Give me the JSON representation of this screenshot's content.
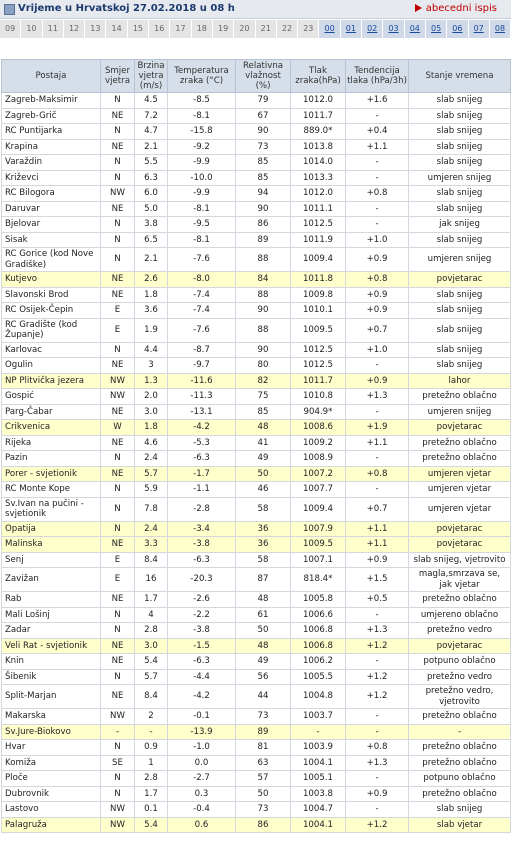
{
  "header": {
    "title": "Vrijeme u Hrvatskoj 27.02.2018 u 08 h",
    "link": "abecedni ispis"
  },
  "hours": [
    "09",
    "10",
    "11",
    "12",
    "13",
    "14",
    "15",
    "16",
    "17",
    "18",
    "19",
    "20",
    "21",
    "22",
    "23",
    "00",
    "01",
    "02",
    "03",
    "04",
    "05",
    "06",
    "07",
    "08"
  ],
  "table": {
    "columns": [
      "Postaja",
      "Smjer vjetra",
      "Brzina vjetra (m/s)",
      "Temperatura zraka (°C)",
      "Relativna vlažnost (%)",
      "Tlak zraka(hPa)",
      "Tendencija tlaka (hPa/3h)",
      "Stanje vremena"
    ],
    "rows": [
      {
        "cells": [
          "Zagreb-Maksimir",
          "N",
          "4.5",
          "-8.5",
          "79",
          "1012.0",
          "+1.6",
          "slab snijeg"
        ]
      },
      {
        "cells": [
          "Zagreb-Grič",
          "NE",
          "7.2",
          "-8.1",
          "67",
          "1011.7",
          "-",
          "slab snijeg"
        ]
      },
      {
        "cells": [
          "RC Puntijarka",
          "N",
          "4.7",
          "-15.8",
          "90",
          "889.0*",
          "+0.4",
          "slab snijeg"
        ]
      },
      {
        "cells": [
          "Krapina",
          "NE",
          "2.1",
          "-9.2",
          "73",
          "1013.8",
          "+1.1",
          "slab snijeg"
        ]
      },
      {
        "cells": [
          "Varaždin",
          "N",
          "5.5",
          "-9.9",
          "85",
          "1014.0",
          "-",
          "slab snijeg"
        ]
      },
      {
        "cells": [
          "Križevci",
          "N",
          "6.3",
          "-10.0",
          "85",
          "1013.3",
          "-",
          "umjeren snijeg"
        ]
      },
      {
        "cells": [
          "RC Bilogora",
          "NW",
          "6.0",
          "-9.9",
          "94",
          "1012.0",
          "+0.8",
          "slab snijeg"
        ]
      },
      {
        "cells": [
          "Daruvar",
          "NE",
          "5.0",
          "-8.1",
          "90",
          "1011.1",
          "-",
          "slab snijeg"
        ]
      },
      {
        "cells": [
          "Bjelovar",
          "N",
          "3.8",
          "-9.5",
          "86",
          "1012.5",
          "-",
          "jak snijeg"
        ]
      },
      {
        "cells": [
          "Sisak",
          "N",
          "6.5",
          "-8.1",
          "89",
          "1011.9",
          "+1.0",
          "slab snijeg"
        ]
      },
      {
        "cells": [
          "RC Gorice (kod Nove Gradiške)",
          "N",
          "2.1",
          "-7.6",
          "88",
          "1009.4",
          "+0.9",
          "umjeren snijeg"
        ]
      },
      {
        "cells": [
          "Kutjevo",
          "NE",
          "2.6",
          "-8.0",
          "84",
          "1011.8",
          "+0.8",
          "povjetarac"
        ],
        "highlight": true
      },
      {
        "cells": [
          "Slavonski Brod",
          "NE",
          "1.8",
          "-7.4",
          "88",
          "1009.8",
          "+0.9",
          "slab snijeg"
        ]
      },
      {
        "cells": [
          "RC Osijek-Čepin",
          "E",
          "3.6",
          "-7.4",
          "90",
          "1010.1",
          "+0.9",
          "slab snijeg"
        ]
      },
      {
        "cells": [
          "RC Gradište (kod Županje)",
          "E",
          "1.9",
          "-7.6",
          "88",
          "1009.5",
          "+0.7",
          "slab snijeg"
        ]
      },
      {
        "cells": [
          "Karlovac",
          "N",
          "4.4",
          "-8.7",
          "90",
          "1012.5",
          "+1.0",
          "slab snijeg"
        ]
      },
      {
        "cells": [
          "Ogulin",
          "NE",
          "3",
          "-9.7",
          "80",
          "1012.5",
          "-",
          "slab snijeg"
        ]
      },
      {
        "cells": [
          "NP Plitvička jezera",
          "NW",
          "1.3",
          "-11.6",
          "82",
          "1011.7",
          "+0.9",
          "lahor"
        ],
        "highlight": true
      },
      {
        "cells": [
          "Gospić",
          "NW",
          "2.0",
          "-11.3",
          "75",
          "1010.8",
          "+1.3",
          "pretežno oblačno"
        ]
      },
      {
        "cells": [
          "Parg-Čabar",
          "NE",
          "3.0",
          "-13.1",
          "85",
          "904.9*",
          "-",
          "umjeren snijeg"
        ]
      },
      {
        "cells": [
          "Crikvenica",
          "W",
          "1.8",
          "-4.2",
          "48",
          "1008.6",
          "+1.9",
          "povjetarac"
        ],
        "highlight": true
      },
      {
        "cells": [
          "Rijeka",
          "NE",
          "4.6",
          "-5.3",
          "41",
          "1009.2",
          "+1.1",
          "pretežno oblačno"
        ]
      },
      {
        "cells": [
          "Pazin",
          "N",
          "2.4",
          "-6.3",
          "49",
          "1008.9",
          "-",
          "pretežno oblačno"
        ]
      },
      {
        "cells": [
          "Porer - svjetionik",
          "NE",
          "5.7",
          "-1.7",
          "50",
          "1007.2",
          "+0.8",
          "umjeren vjetar"
        ],
        "highlight": true
      },
      {
        "cells": [
          "RC Monte Kope",
          "N",
          "5.9",
          "-1.1",
          "46",
          "1007.7",
          "-",
          "umjeren vjetar"
        ]
      },
      {
        "cells": [
          "Sv.Ivan na pučini - svjetionik",
          "N",
          "7.8",
          "-2.8",
          "58",
          "1009.4",
          "+0.7",
          "umjeren vjetar"
        ]
      },
      {
        "cells": [
          "Opatija",
          "N",
          "2.4",
          "-3.4",
          "36",
          "1007.9",
          "+1.1",
          "povjetarac"
        ],
        "highlight": true
      },
      {
        "cells": [
          "Malinska",
          "NE",
          "3.3",
          "-3.8",
          "36",
          "1009.5",
          "+1.1",
          "povjetarac"
        ],
        "highlight": true
      },
      {
        "cells": [
          "Senj",
          "E",
          "8.4",
          "-6.3",
          "58",
          "1007.1",
          "+0.9",
          "slab snijeg, vjetrovito"
        ]
      },
      {
        "cells": [
          "Zavižan",
          "E",
          "16",
          "-20.3",
          "87",
          "818.4*",
          "+1.5",
          "magla,smrzava se, jak vjetar"
        ]
      },
      {
        "cells": [
          "Rab",
          "NE",
          "1.7",
          "-2.6",
          "48",
          "1005.8",
          "+0.5",
          "pretežno oblačno"
        ]
      },
      {
        "cells": [
          "Mali Lošinj",
          "N",
          "4",
          "-2.2",
          "61",
          "1006.6",
          "-",
          "umjereno oblačno"
        ]
      },
      {
        "cells": [
          "Zadar",
          "N",
          "2.8",
          "-3.8",
          "50",
          "1006.8",
          "+1.3",
          "pretežno vedro"
        ]
      },
      {
        "cells": [
          "Veli Rat - svjetionik",
          "NE",
          "3.0",
          "-1.5",
          "48",
          "1006.8",
          "+1.2",
          "povjetarac"
        ],
        "highlight": true
      },
      {
        "cells": [
          "Knin",
          "NE",
          "5.4",
          "-6.3",
          "49",
          "1006.2",
          "-",
          "potpuno oblačno"
        ]
      },
      {
        "cells": [
          "Šibenik",
          "N",
          "5.7",
          "-4.4",
          "56",
          "1005.5",
          "+1.2",
          "pretežno vedro"
        ]
      },
      {
        "cells": [
          "Split-Marjan",
          "NE",
          "8.4",
          "-4.2",
          "44",
          "1004.8",
          "+1.2",
          "pretežno vedro, vjetrovito"
        ]
      },
      {
        "cells": [
          "Makarska",
          "NW",
          "2",
          "-0.1",
          "73",
          "1003.7",
          "-",
          "pretežno oblačno"
        ]
      },
      {
        "cells": [
          "Sv.Jure-Biokovo",
          "-",
          "-",
          "-13.9",
          "89",
          "-",
          "-",
          "-"
        ],
        "highlight": true
      },
      {
        "cells": [
          "Hvar",
          "N",
          "0.9",
          "-1.0",
          "81",
          "1003.9",
          "+0.8",
          "pretežno oblačno"
        ]
      },
      {
        "cells": [
          "Komiža",
          "SE",
          "1",
          "0.0",
          "63",
          "1004.1",
          "+1.3",
          "pretežno oblačno"
        ]
      },
      {
        "cells": [
          "Ploče",
          "N",
          "2.8",
          "-2.7",
          "57",
          "1005.1",
          "-",
          "potpuno oblačno"
        ]
      },
      {
        "cells": [
          "Dubrovnik",
          "N",
          "1.7",
          "0.3",
          "50",
          "1003.8",
          "+0.9",
          "pretežno oblačno"
        ]
      },
      {
        "cells": [
          "Lastovo",
          "NW",
          "0.1",
          "-0.4",
          "73",
          "1004.7",
          "-",
          "slab snijeg"
        ]
      },
      {
        "cells": [
          "Palagruža",
          "NW",
          "5.4",
          "0.6",
          "86",
          "1004.1",
          "+1.2",
          "slab vjetar"
        ],
        "highlight": true
      }
    ]
  }
}
